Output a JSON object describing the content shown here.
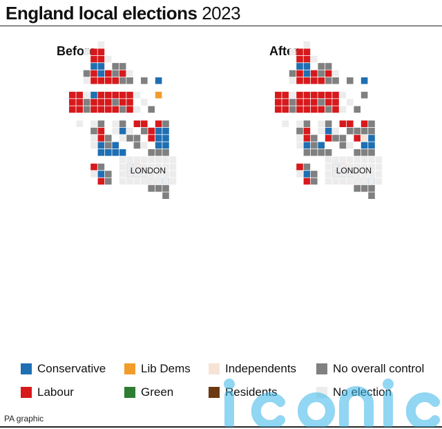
{
  "title": {
    "bold": "England local elections",
    "year": "2023"
  },
  "maps": [
    {
      "label": "Before",
      "center_label": "LONDON"
    },
    {
      "label": "After",
      "center_label": "LONDON"
    }
  ],
  "legend": [
    {
      "key": "C",
      "label": "Conservative",
      "color": "#1f6fb2"
    },
    {
      "key": "D",
      "label": "Lib Dems",
      "color": "#f29d2b"
    },
    {
      "key": "I",
      "label": "Independents",
      "color": "#f7e3d6"
    },
    {
      "key": "N",
      "label": "No overall control",
      "color": "#808080"
    },
    {
      "key": "L",
      "label": "Labour",
      "color": "#d7191c"
    },
    {
      "key": "G",
      "label": "Green",
      "color": "#2e7d32"
    },
    {
      "key": "R",
      "label": "Residents",
      "color": "#6b3a12"
    },
    {
      "key": "E",
      "label": "No election",
      "color": "#ececec"
    }
  ],
  "credit": "PA graphic",
  "watermark": "iconic",
  "grid": {
    "before": [
      "....E.........",
      "..ELL.........",
      "...LLE........",
      "...CC.NN......",
      "..NLCLNLE.....",
      "..ELLLLNN.N.C.",
      "..............",
      "LLECLLLLLE..D.",
      "LLNLLLNLL.E...",
      "LLNLLLLNLE.N..",
      "..............",
      ".E.EN.EN.LL.LN",
      "...NL.ECE.NLCC",
      "...ELN.ENN.LCC",
      "...ECNC..NE.CC",
      "....CCCC...NNN",
      "..............",
      "...LN...CLE...",
      "...ECN..NCC...",
      "....LN....ELCC",
      "...........NNN",
      ".............N"
    ],
    "after": [
      "....E.........",
      "..ELL.........",
      "...LLE........",
      "...CC.NN......",
      "..NLCLNLE.....",
      "..ELLLLNN.N.C.",
      "..............",
      "LLELLLLLLE..N.",
      "LLNLLLNLL.E...",
      "LLNLLLLNLE.N..",
      "..............",
      ".E.EN.EN.LL.LN",
      "...NL.ECE.NNNN",
      "...ELN.LNN.LIC",
      "...ECNC..NE.CC",
      "....NNNN...NNN",
      "..............",
      "...LN...CLE...",
      "...ECN..NCC...",
      "....LN....ELCC",
      "...........NNN",
      ".............N"
    ]
  }
}
